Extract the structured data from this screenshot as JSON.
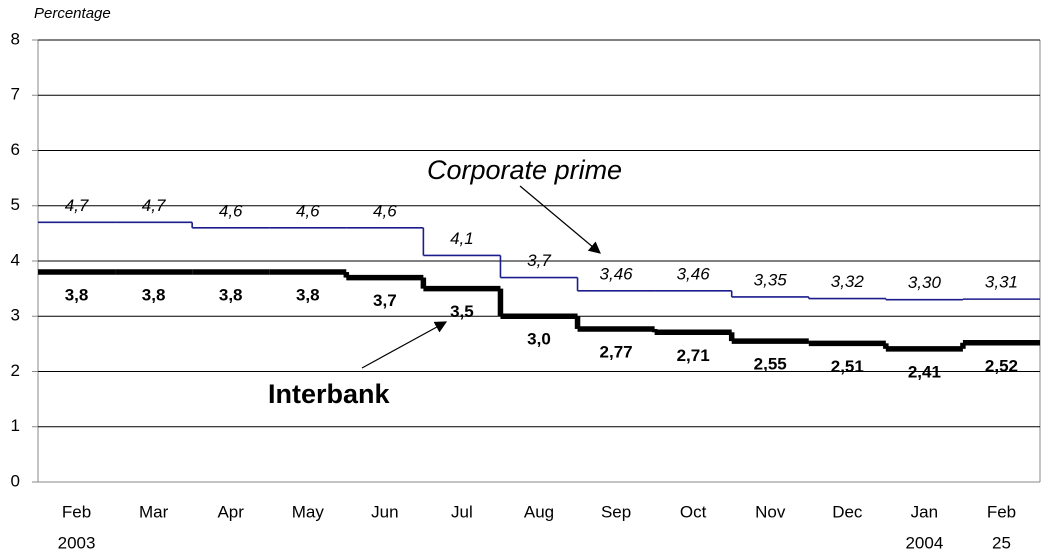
{
  "chart_data": {
    "type": "line",
    "step": true,
    "y_label": "Percentage",
    "categories": [
      "Feb",
      "Mar",
      "Apr",
      "May",
      "Jun",
      "Jul",
      "Aug",
      "Sep",
      "Oct",
      "Nov",
      "Dec",
      "Jan",
      "Feb"
    ],
    "category_sublabels": [
      "2003",
      null,
      null,
      null,
      null,
      null,
      null,
      null,
      null,
      null,
      null,
      "2004",
      "25"
    ],
    "series": [
      {
        "name": "Corporate prime",
        "color": "#1c1c8c",
        "values": [
          4.7,
          4.7,
          4.6,
          4.6,
          4.6,
          4.1,
          3.7,
          3.46,
          3.46,
          3.35,
          3.32,
          3.3,
          3.31
        ],
        "value_labels": [
          "4,7",
          "4,7",
          "4,6",
          "4,6",
          "4,6",
          "4,1",
          "3,7",
          "3,46",
          "3,46",
          "3,35",
          "3,32",
          "3,30",
          "3,31"
        ]
      },
      {
        "name": "Interbank",
        "color": "#000000",
        "values": [
          3.8,
          3.8,
          3.8,
          3.8,
          3.7,
          3.5,
          3.0,
          2.77,
          2.71,
          2.55,
          2.51,
          2.41,
          2.52
        ],
        "value_labels": [
          "3,8",
          "3,8",
          "3,8",
          "3,8",
          "3,7",
          "3,5",
          "3,0",
          "2,77",
          "2,71",
          "2,55",
          "2,51",
          "2,41",
          "2,52"
        ]
      }
    ],
    "ylim": [
      0,
      8
    ],
    "yticks": [
      0,
      1,
      2,
      3,
      4,
      5,
      6,
      7,
      8
    ],
    "grid": true
  }
}
